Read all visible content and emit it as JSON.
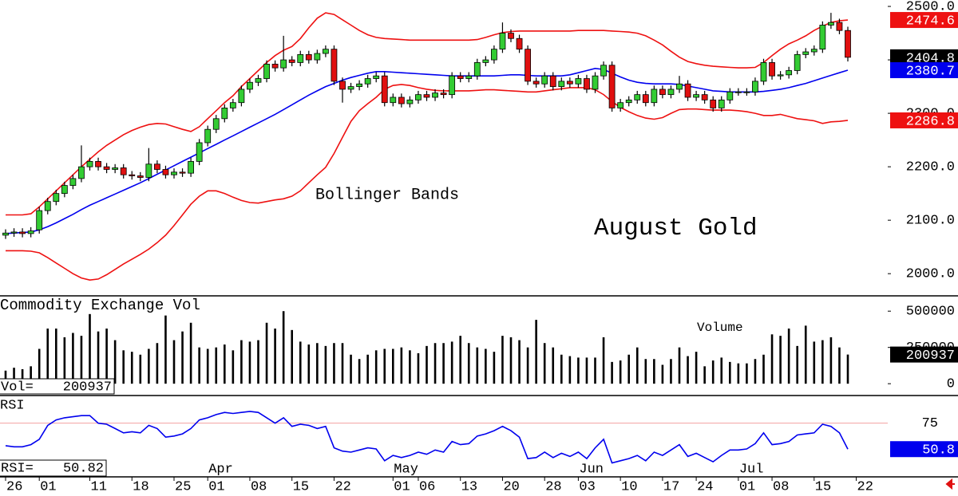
{
  "chart_data": [
    {
      "type": "candlestick",
      "title": "August Gold",
      "annotation": "Bollinger Bands",
      "up_color": "#33cc33",
      "down_color": "#e01010",
      "open": [
        2072,
        2076,
        2078,
        2075,
        2082,
        2118,
        2135,
        2150,
        2165,
        2178,
        2200,
        2210,
        2200,
        2195,
        2198,
        2185,
        2183,
        2180,
        2205,
        2195,
        2185,
        2190,
        2188,
        2210,
        2245,
        2270,
        2290,
        2310,
        2320,
        2345,
        2358,
        2365,
        2392,
        2385,
        2400,
        2395,
        2410,
        2400,
        2412,
        2420,
        2360,
        2345,
        2350,
        2355,
        2365,
        2370,
        2320,
        2330,
        2318,
        2325,
        2335,
        2330,
        2338,
        2335,
        2370,
        2365,
        2370,
        2395,
        2400,
        2420,
        2450,
        2440,
        2420,
        2360,
        2355,
        2370,
        2350,
        2360,
        2355,
        2365,
        2345,
        2370,
        2390,
        2310,
        2320,
        2325,
        2335,
        2320,
        2345,
        2335,
        2345,
        2355,
        2330,
        2335,
        2325,
        2310,
        2325,
        2340,
        2340,
        2340,
        2360,
        2395,
        2370,
        2372,
        2380,
        2410,
        2415,
        2420,
        2465,
        2470,
        2455,
        null
      ],
      "high": [
        2083,
        2085,
        2085,
        2087,
        2125,
        2142,
        2157,
        2172,
        2185,
        2240,
        2217,
        2217,
        2207,
        2205,
        2205,
        2192,
        2190,
        2235,
        2212,
        2202,
        2197,
        2197,
        2217,
        2252,
        2277,
        2297,
        2317,
        2327,
        2352,
        2365,
        2372,
        2399,
        2399,
        2445,
        2407,
        2417,
        2417,
        2419,
        2427,
        2427,
        2367,
        2357,
        2362,
        2372,
        2377,
        2377,
        2337,
        2337,
        2332,
        2342,
        2342,
        2345,
        2345,
        2377,
        2377,
        2377,
        2402,
        2407,
        2427,
        2470,
        2457,
        2447,
        2427,
        2367,
        2377,
        2377,
        2367,
        2367,
        2372,
        2372,
        2377,
        2397,
        2397,
        2327,
        2332,
        2342,
        2342,
        2352,
        2352,
        2352,
        2370,
        2362,
        2342,
        2342,
        2332,
        2332,
        2347,
        2347,
        2347,
        2367,
        2402,
        2402,
        2379,
        2387,
        2417,
        2422,
        2427,
        2472,
        2488,
        2477,
        2462,
        null
      ],
      "low": [
        2065,
        2069,
        2068,
        2068,
        2075,
        2111,
        2128,
        2143,
        2158,
        2171,
        2193,
        2193,
        2188,
        2188,
        2178,
        2176,
        2173,
        2173,
        2188,
        2178,
        2178,
        2181,
        2181,
        2203,
        2238,
        2263,
        2283,
        2303,
        2313,
        2338,
        2351,
        2358,
        2378,
        2378,
        2388,
        2388,
        2393,
        2393,
        2405,
        2353,
        2320,
        2338,
        2343,
        2348,
        2358,
        2313,
        2313,
        2311,
        2311,
        2318,
        2323,
        2323,
        2328,
        2328,
        2358,
        2358,
        2363,
        2388,
        2393,
        2413,
        2433,
        2413,
        2353,
        2348,
        2348,
        2343,
        2343,
        2348,
        2348,
        2338,
        2338,
        2363,
        2303,
        2303,
        2313,
        2318,
        2313,
        2313,
        2328,
        2328,
        2338,
        2323,
        2323,
        2318,
        2303,
        2303,
        2318,
        2333,
        2333,
        2333,
        2353,
        2363,
        2363,
        2365,
        2373,
        2403,
        2408,
        2413,
        2458,
        2448,
        2397,
        null
      ],
      "close": [
        2076,
        2078,
        2075,
        2080,
        2118,
        2135,
        2150,
        2165,
        2178,
        2200,
        2210,
        2200,
        2195,
        2198,
        2185,
        2183,
        2180,
        2205,
        2195,
        2185,
        2190,
        2188,
        2210,
        2245,
        2270,
        2290,
        2310,
        2320,
        2345,
        2358,
        2365,
        2392,
        2385,
        2400,
        2395,
        2410,
        2400,
        2412,
        2420,
        2360,
        2345,
        2350,
        2355,
        2365,
        2370,
        2320,
        2330,
        2318,
        2325,
        2335,
        2330,
        2338,
        2335,
        2370,
        2365,
        2370,
        2395,
        2400,
        2420,
        2450,
        2440,
        2420,
        2360,
        2355,
        2370,
        2350,
        2360,
        2355,
        2365,
        2345,
        2370,
        2390,
        2310,
        2320,
        2325,
        2335,
        2320,
        2345,
        2335,
        2345,
        2355,
        2330,
        2335,
        2325,
        2310,
        2325,
        2340,
        2340,
        2340,
        2360,
        2395,
        2370,
        2372,
        2380,
        2410,
        2415,
        2420,
        2465,
        2470,
        2455,
        2404.8,
        null
      ],
      "series": [
        {
          "color": "#ee1111",
          "values": [
            2110,
            2110,
            2110,
            2112,
            2125,
            2140,
            2155,
            2170,
            2185,
            2200,
            2214,
            2228,
            2240,
            2250,
            2260,
            2268,
            2274,
            2279,
            2281,
            2280,
            2275,
            2270,
            2266,
            2275,
            2290,
            2305,
            2320,
            2333,
            2350,
            2365,
            2380,
            2395,
            2408,
            2418,
            2425,
            2440,
            2460,
            2478,
            2488,
            2485,
            2475,
            2465,
            2455,
            2447,
            2442,
            2440,
            2439,
            2438,
            2437,
            2437,
            2437,
            2437,
            2437,
            2437,
            2437,
            2437,
            2438,
            2442,
            2447,
            2451,
            2453,
            2454,
            2454,
            2454,
            2454,
            2454,
            2454,
            2454,
            2455,
            2455,
            2455,
            2455,
            2454,
            2453,
            2452,
            2450,
            2445,
            2437,
            2428,
            2416,
            2405,
            2397,
            2393,
            2390,
            2388,
            2387,
            2386,
            2385,
            2385,
            2386,
            2395,
            2408,
            2420,
            2430,
            2437,
            2445,
            2455,
            2463,
            2470,
            2473,
            2474.6,
            null
          ]
        },
        {
          "color": "#0000ee",
          "values": [
            2075,
            2076,
            2077,
            2078,
            2082,
            2088,
            2095,
            2103,
            2111,
            2120,
            2128,
            2135,
            2142,
            2149,
            2156,
            2163,
            2170,
            2178,
            2186,
            2194,
            2202,
            2210,
            2218,
            2226,
            2234,
            2242,
            2250,
            2258,
            2266,
            2274,
            2282,
            2290,
            2298,
            2307,
            2316,
            2325,
            2334,
            2342,
            2350,
            2356,
            2362,
            2367,
            2371,
            2375,
            2378,
            2378,
            2377,
            2376,
            2375,
            2374,
            2373,
            2372,
            2371,
            2370,
            2370,
            2370,
            2370,
            2370,
            2370,
            2371,
            2372,
            2372,
            2371,
            2370,
            2370,
            2370,
            2370,
            2372,
            2376,
            2380,
            2384,
            2382,
            2375,
            2368,
            2362,
            2358,
            2356,
            2355,
            2355,
            2355,
            2354,
            2351,
            2348,
            2345,
            2342,
            2341,
            2340,
            2340,
            2340,
            2340,
            2341,
            2343,
            2345,
            2348,
            2352,
            2356,
            2361,
            2366,
            2371,
            2376,
            2380.7,
            null
          ]
        },
        {
          "color": "#ee1111",
          "values": [
            2043,
            2043,
            2043,
            2042,
            2039,
            2030,
            2020,
            2010,
            2000,
            1992,
            1988,
            1990,
            1998,
            2008,
            2018,
            2027,
            2036,
            2046,
            2058,
            2072,
            2090,
            2110,
            2130,
            2145,
            2155,
            2155,
            2150,
            2143,
            2137,
            2133,
            2132,
            2135,
            2138,
            2140,
            2145,
            2155,
            2170,
            2185,
            2199,
            2225,
            2255,
            2285,
            2305,
            2318,
            2330,
            2345,
            2352,
            2354,
            2352,
            2348,
            2345,
            2343,
            2342,
            2342,
            2342,
            2342,
            2343,
            2344,
            2344,
            2343,
            2342,
            2341,
            2340,
            2340,
            2342,
            2344,
            2346,
            2348,
            2348,
            2348,
            2344,
            2335,
            2322,
            2311,
            2303,
            2296,
            2291,
            2289,
            2292,
            2300,
            2307,
            2308,
            2308,
            2307,
            2306,
            2306,
            2306,
            2305,
            2303,
            2300,
            2296,
            2296,
            2298,
            2294,
            2290,
            2288,
            2286,
            2281,
            2284,
            2285,
            2286.8,
            null
          ]
        }
      ],
      "ylim": [
        1960,
        2512
      ],
      "yticks": [
        {
          "value": 2000,
          "label": "2000.0"
        },
        {
          "value": 2100,
          "label": "2100.0"
        },
        {
          "value": 2200,
          "label": "2200.0"
        },
        {
          "value": 2300,
          "label": "2300.0"
        },
        {
          "value": 2400,
          "label": "2400.0"
        },
        {
          "value": 2500,
          "label": "2500.0"
        }
      ]
    },
    {
      "type": "bar",
      "title": "Commodity Exchange Vol",
      "annotation": "Volume",
      "readout_label": "Vol=",
      "color": "#000000",
      "values": [
        90000,
        110000,
        100000,
        120000,
        240000,
        380000,
        380000,
        320000,
        350000,
        330000,
        480000,
        360000,
        380000,
        300000,
        230000,
        220000,
        200000,
        240000,
        280000,
        470000,
        300000,
        360000,
        420000,
        250000,
        240000,
        250000,
        270000,
        230000,
        300000,
        290000,
        300000,
        420000,
        380000,
        500000,
        370000,
        290000,
        270000,
        280000,
        260000,
        280000,
        280000,
        200000,
        170000,
        200000,
        230000,
        240000,
        240000,
        250000,
        230000,
        210000,
        260000,
        280000,
        280000,
        290000,
        330000,
        280000,
        250000,
        240000,
        220000,
        330000,
        320000,
        300000,
        250000,
        440000,
        280000,
        250000,
        200000,
        190000,
        180000,
        180000,
        180000,
        320000,
        150000,
        160000,
        200000,
        250000,
        170000,
        170000,
        130000,
        170000,
        250000,
        190000,
        220000,
        120000,
        160000,
        180000,
        150000,
        140000,
        140000,
        170000,
        200000,
        340000,
        330000,
        380000,
        260000,
        400000,
        290000,
        300000,
        320000,
        250000,
        200937,
        null
      ],
      "ylim": [
        -76000,
        600000
      ],
      "yticks": [
        0,
        250000,
        500000
      ]
    },
    {
      "type": "line",
      "title": "RSI",
      "readout_label": "RSI=",
      "color": "#0000ee",
      "badge_label": "50.8",
      "values": [
        54,
        53,
        53,
        55,
        60,
        73,
        78,
        80,
        81,
        82,
        82,
        75,
        74,
        70,
        66,
        67,
        66,
        73,
        70,
        62,
        63,
        65,
        70,
        78,
        80,
        83,
        85,
        84,
        85,
        86,
        85,
        80,
        75,
        80,
        72,
        74,
        73,
        70,
        72,
        52,
        49,
        48,
        50,
        52,
        51,
        40,
        45,
        43,
        45,
        48,
        46,
        50,
        48,
        58,
        55,
        56,
        63,
        65,
        68,
        72,
        68,
        62,
        42,
        43,
        48,
        43,
        47,
        44,
        48,
        42,
        52,
        60,
        38,
        40,
        42,
        45,
        40,
        48,
        45,
        50,
        55,
        44,
        47,
        43,
        39,
        45,
        50,
        50,
        51,
        56,
        66,
        55,
        56,
        58,
        64,
        65,
        66,
        74,
        72,
        66,
        50.82,
        null
      ],
      "categories": [
        "26",
        null,
        null,
        null,
        "01",
        null,
        null,
        null,
        null,
        null,
        "11",
        null,
        null,
        null,
        null,
        "18",
        null,
        null,
        null,
        null,
        "25",
        null,
        null,
        null,
        "01",
        null,
        null,
        null,
        null,
        "08",
        null,
        null,
        null,
        null,
        "15",
        null,
        null,
        null,
        null,
        "22",
        null,
        null,
        null,
        null,
        null,
        null,
        "01",
        null,
        null,
        "06",
        null,
        null,
        null,
        null,
        "13",
        null,
        null,
        null,
        null,
        "20",
        null,
        null,
        null,
        null,
        "28",
        null,
        null,
        null,
        "03",
        null,
        null,
        null,
        null,
        "10",
        null,
        null,
        null,
        null,
        "17",
        null,
        null,
        null,
        "24",
        null,
        null,
        null,
        null,
        "01",
        null,
        null,
        null,
        "08",
        null,
        null,
        null,
        null,
        "15",
        null,
        null,
        null,
        null,
        "22"
      ],
      "month_labels": [
        null,
        null,
        null,
        null,
        null,
        null,
        null,
        null,
        null,
        null,
        null,
        null,
        null,
        null,
        null,
        null,
        null,
        null,
        null,
        null,
        null,
        null,
        null,
        null,
        "Apr",
        null,
        null,
        null,
        null,
        null,
        null,
        null,
        null,
        null,
        null,
        null,
        null,
        null,
        null,
        null,
        null,
        null,
        null,
        null,
        null,
        null,
        "May",
        null,
        null,
        null,
        null,
        null,
        null,
        null,
        null,
        null,
        null,
        null,
        null,
        null,
        null,
        null,
        null,
        null,
        null,
        null,
        null,
        null,
        "Jun",
        null,
        null,
        null,
        null,
        null,
        null,
        null,
        null,
        null,
        null,
        null,
        null,
        null,
        null,
        null,
        null,
        null,
        null,
        "Jul",
        null,
        null,
        null,
        null,
        null,
        null,
        null,
        null,
        null,
        null,
        null,
        null,
        null,
        null
      ],
      "ylim": [
        25,
        100
      ],
      "yticks": [
        75
      ]
    }
  ]
}
